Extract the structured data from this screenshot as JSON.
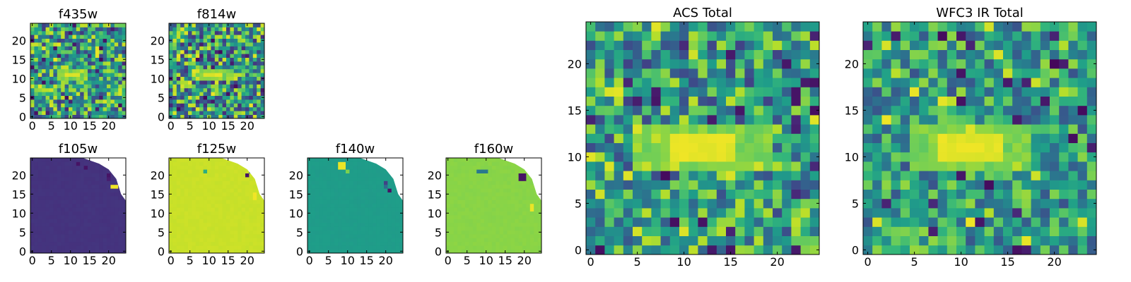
{
  "chart_data": [
    {
      "type": "heatmap",
      "title": "f435w",
      "xlim": [
        0,
        25
      ],
      "ylim": [
        0,
        25
      ],
      "xticks": [
        0,
        5,
        10,
        15,
        20
      ],
      "yticks": [
        0,
        5,
        10,
        15,
        20
      ],
      "grid": false,
      "colormap": "viridis",
      "pattern": "noise",
      "source": {
        "center": [
          11,
          11.5
        ],
        "half_size": [
          2,
          1
        ],
        "peak": 0.97
      },
      "noise_level": 0.55,
      "seed": 11
    },
    {
      "type": "heatmap",
      "title": "f814w",
      "xlim": [
        0,
        25
      ],
      "ylim": [
        0,
        25
      ],
      "xticks": [
        0,
        5,
        10,
        15,
        20
      ],
      "yticks": [
        0,
        5,
        10,
        15,
        20
      ],
      "grid": false,
      "colormap": "viridis",
      "pattern": "noise",
      "source": {
        "center": [
          11.5,
          11.5
        ],
        "half_size": [
          3,
          1
        ],
        "peak": 0.97
      },
      "noise_level": 0.6,
      "seed": 23
    },
    {
      "type": "heatmap",
      "title": "f105w",
      "xlim": [
        0,
        25
      ],
      "ylim": [
        0,
        25
      ],
      "xticks": [
        0,
        5,
        10,
        15,
        20
      ],
      "yticks": [
        0,
        5,
        10,
        15,
        20
      ],
      "grid": false,
      "colormap": "viridis",
      "pattern": "flat",
      "base_value": 0.15,
      "spots": [
        {
          "x": 12,
          "y": 23,
          "w": 1,
          "h": 1,
          "v": 0.05
        },
        {
          "x": 14,
          "y": 22,
          "w": 1,
          "h": 1,
          "v": 0.05
        },
        {
          "x": 20,
          "y": 20,
          "w": 1,
          "h": 1,
          "v": 0.05
        },
        {
          "x": 21,
          "y": 17,
          "w": 2,
          "h": 1,
          "v": 0.98
        },
        {
          "x": 20,
          "y": 19,
          "w": 1,
          "h": 1,
          "v": 0.08
        }
      ],
      "seed": 31
    },
    {
      "type": "heatmap",
      "title": "f125w",
      "xlim": [
        0,
        25
      ],
      "ylim": [
        0,
        25
      ],
      "xticks": [
        0,
        5,
        10,
        15,
        20
      ],
      "yticks": [
        0,
        5,
        10,
        15,
        20
      ],
      "grid": false,
      "colormap": "viridis",
      "pattern": "flat",
      "base_value": 0.92,
      "spots": [
        {
          "x": 9,
          "y": 21,
          "w": 1,
          "h": 1,
          "v": 0.62
        },
        {
          "x": 20,
          "y": 20,
          "w": 1,
          "h": 1,
          "v": 0.05
        },
        {
          "x": 21,
          "y": 21,
          "w": 1,
          "h": 1,
          "v": 0.3
        },
        {
          "x": 22,
          "y": 14,
          "w": 1,
          "h": 2,
          "v": 0.98
        }
      ],
      "seed": 47
    },
    {
      "type": "heatmap",
      "title": "f140w",
      "xlim": [
        0,
        25
      ],
      "ylim": [
        0,
        25
      ],
      "xticks": [
        0,
        5,
        10,
        15,
        20
      ],
      "yticks": [
        0,
        5,
        10,
        15,
        20
      ],
      "grid": false,
      "colormap": "viridis",
      "pattern": "flat",
      "base_value": 0.55,
      "spots": [
        {
          "x": 8,
          "y": 22,
          "w": 2,
          "h": 2,
          "v": 0.97
        },
        {
          "x": 10,
          "y": 21,
          "w": 1,
          "h": 1,
          "v": 0.8
        },
        {
          "x": 20,
          "y": 18,
          "w": 1,
          "h": 1,
          "v": 0.2
        },
        {
          "x": 21,
          "y": 16,
          "w": 1,
          "h": 1,
          "v": 0.05
        },
        {
          "x": 20,
          "y": 17,
          "w": 1,
          "h": 1,
          "v": 0.35
        }
      ],
      "seed": 59
    },
    {
      "type": "heatmap",
      "title": "f160w",
      "xlim": [
        0,
        25
      ],
      "ylim": [
        0,
        25
      ],
      "xticks": [
        0,
        5,
        10,
        15,
        20
      ],
      "yticks": [
        0,
        5,
        10,
        15,
        20
      ],
      "grid": false,
      "colormap": "viridis",
      "pattern": "flat",
      "base_value": 0.82,
      "spots": [
        {
          "x": 8,
          "y": 21,
          "w": 3,
          "h": 1,
          "v": 0.4
        },
        {
          "x": 19,
          "y": 19,
          "w": 2,
          "h": 2,
          "v": 0.05
        },
        {
          "x": 22,
          "y": 11,
          "w": 1,
          "h": 2,
          "v": 0.97
        }
      ],
      "seed": 61
    },
    {
      "type": "heatmap",
      "title": "ACS Total",
      "xlim": [
        0,
        25
      ],
      "ylim": [
        0,
        25
      ],
      "xticks": [
        0,
        5,
        10,
        15,
        20
      ],
      "yticks": [
        0,
        5,
        10,
        15,
        20
      ],
      "grid": false,
      "colormap": "viridis",
      "pattern": "noise",
      "source": {
        "center": [
          12.5,
          11.5
        ],
        "half_size": [
          4,
          1.5
        ],
        "peak": 0.98
      },
      "noise_level": 0.5,
      "seed": 73
    },
    {
      "type": "heatmap",
      "title": "WFC3 IR Total",
      "xlim": [
        0,
        25
      ],
      "ylim": [
        0,
        25
      ],
      "xticks": [
        0,
        5,
        10,
        15,
        20
      ],
      "yticks": [
        0,
        5,
        10,
        15,
        20
      ],
      "grid": false,
      "colormap": "viridis",
      "pattern": "noise",
      "source": {
        "center": [
          11.5,
          11.5
        ],
        "half_size": [
          3.5,
          1.2
        ],
        "peak": 0.98
      },
      "noise_level": 0.42,
      "seed": 89
    }
  ]
}
